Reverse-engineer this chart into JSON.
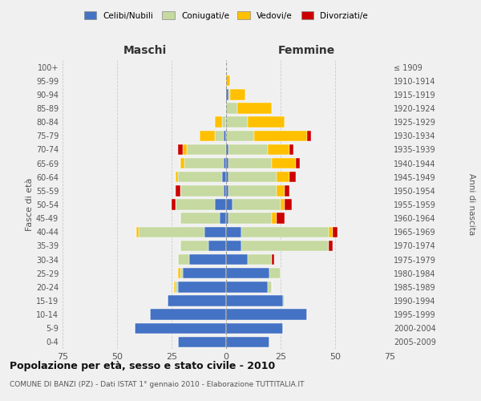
{
  "age_groups": [
    "0-4",
    "5-9",
    "10-14",
    "15-19",
    "20-24",
    "25-29",
    "30-34",
    "35-39",
    "40-44",
    "45-49",
    "50-54",
    "55-59",
    "60-64",
    "65-69",
    "70-74",
    "75-79",
    "80-84",
    "85-89",
    "90-94",
    "95-99",
    "100+"
  ],
  "birth_years": [
    "2005-2009",
    "2000-2004",
    "1995-1999",
    "1990-1994",
    "1985-1989",
    "1980-1984",
    "1975-1979",
    "1970-1974",
    "1965-1969",
    "1960-1964",
    "1955-1959",
    "1950-1954",
    "1945-1949",
    "1940-1944",
    "1935-1939",
    "1930-1934",
    "1925-1929",
    "1920-1924",
    "1915-1919",
    "1910-1914",
    "≤ 1909"
  ],
  "maschi": {
    "celibi": [
      22,
      42,
      35,
      27,
      22,
      20,
      17,
      8,
      10,
      3,
      5,
      1,
      2,
      1,
      0,
      1,
      0,
      0,
      0,
      0,
      0
    ],
    "coniugati": [
      0,
      0,
      0,
      0,
      1,
      1,
      5,
      13,
      30,
      18,
      18,
      20,
      20,
      18,
      18,
      4,
      2,
      0,
      0,
      0,
      0
    ],
    "vedovi": [
      0,
      0,
      0,
      0,
      1,
      1,
      0,
      0,
      1,
      0,
      0,
      0,
      1,
      2,
      2,
      7,
      3,
      0,
      0,
      0,
      0
    ],
    "divorziati": [
      0,
      0,
      0,
      0,
      0,
      0,
      0,
      0,
      0,
      0,
      2,
      2,
      0,
      0,
      2,
      0,
      0,
      0,
      0,
      0,
      0
    ]
  },
  "femmine": {
    "nubili": [
      20,
      26,
      37,
      26,
      19,
      20,
      10,
      7,
      7,
      1,
      3,
      1,
      1,
      1,
      1,
      0,
      0,
      0,
      1,
      0,
      0
    ],
    "coniugate": [
      0,
      0,
      0,
      1,
      2,
      5,
      11,
      40,
      40,
      20,
      22,
      22,
      22,
      20,
      18,
      13,
      10,
      5,
      1,
      0,
      0
    ],
    "vedove": [
      0,
      0,
      0,
      0,
      0,
      0,
      0,
      0,
      2,
      2,
      2,
      4,
      6,
      11,
      10,
      24,
      17,
      16,
      7,
      2,
      0
    ],
    "divorziate": [
      0,
      0,
      0,
      0,
      0,
      0,
      1,
      2,
      2,
      4,
      3,
      2,
      3,
      2,
      2,
      2,
      0,
      0,
      0,
      0,
      0
    ]
  },
  "colors": {
    "celibi_nubili": "#4472c4",
    "coniugati_e": "#c5d9a0",
    "vedovi_e": "#ffc000",
    "divorziati_e": "#cc0000"
  },
  "xlim": 75,
  "title": "Popolazione per età, sesso e stato civile - 2010",
  "subtitle": "COMUNE DI BANZI (PZ) - Dati ISTAT 1° gennaio 2010 - Elaborazione TUTTITALIA.IT",
  "ylabel_left": "Fasce di età",
  "ylabel_right": "Anni di nascita",
  "xlabel_left": "Maschi",
  "xlabel_right": "Femmine",
  "bg_color": "#f0f0f0"
}
